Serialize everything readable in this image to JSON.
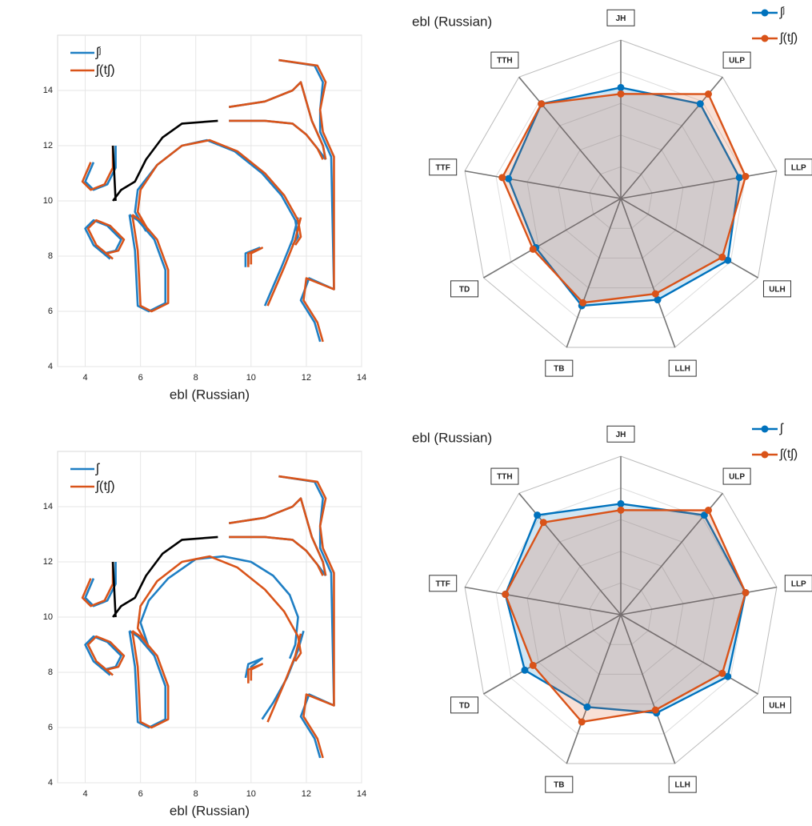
{
  "chart_data": [
    {
      "type": "contour",
      "xlabel": "ebl (Russian)",
      "xlim": [
        3,
        14
      ],
      "ylim": [
        4,
        16
      ],
      "xticks": [
        4,
        6,
        8,
        10,
        12,
        14
      ],
      "yticks": [
        4,
        6,
        8,
        10,
        12,
        14
      ],
      "grid": true,
      "legend": "upper left",
      "series": [
        {
          "name": "ʃʲ",
          "color": "#1f7fc4",
          "x": [
            4.3,
            4.0,
            4.3,
            4.8,
            5.1,
            5.1,
            null,
            4.9,
            4.3,
            4.0,
            4.3,
            4.8,
            5.3,
            5.1,
            4.7,
            null,
            5.6,
            5.8,
            5.9,
            6.3,
            6.9,
            6.9,
            6.5,
            5.9,
            5.6,
            null,
            6.2,
            5.8,
            5.9,
            6.6,
            7.5,
            8.4,
            9.4,
            10.4,
            11.1,
            11.6,
            11.7,
            11.5,
            null,
            11.7,
            11.5,
            11.1,
            10.8,
            10.5,
            null,
            9.8,
            9.8,
            10.3,
            9.9,
            9.9,
            null,
            9.2,
            10.5,
            11.5,
            12.0,
            12.4,
            12.7,
            null,
            9.2,
            10.5,
            11.5,
            11.8,
            12.2,
            12.6,
            12.7,
            null,
            11.0,
            12.3,
            12.6,
            12.5,
            12.5,
            12.9,
            13.0,
            12.1,
            11.8,
            12.3,
            12.5
          ],
          "values": [
            11.4,
            10.7,
            10.4,
            10.6,
            11.2,
            12.0,
            null,
            7.9,
            8.4,
            9.0,
            9.3,
            9.1,
            8.6,
            8.2,
            8.1,
            null,
            9.5,
            8.2,
            6.2,
            6.0,
            6.3,
            7.5,
            8.6,
            9.3,
            9.5,
            null,
            8.9,
            9.6,
            10.4,
            11.3,
            12.0,
            12.2,
            11.8,
            11.0,
            10.2,
            9.3,
            8.7,
            8.4,
            null,
            9.4,
            8.6,
            7.6,
            6.9,
            6.2,
            null,
            7.6,
            8.1,
            8.3,
            8.1,
            7.7,
            null,
            12.9,
            12.9,
            12.8,
            12.4,
            11.9,
            11.5,
            null,
            13.4,
            13.6,
            14.0,
            14.3,
            12.9,
            12.0,
            11.5,
            null,
            15.1,
            14.9,
            14.3,
            13.3,
            12.5,
            11.6,
            6.8,
            7.2,
            6.4,
            5.6,
            4.9
          ]
        },
        {
          "name": "ʃ(tʃ)",
          "color": "#d9541a",
          "x": [
            4.2,
            3.9,
            4.2,
            4.7,
            5.0,
            5.0,
            null,
            5.0,
            4.4,
            4.1,
            4.4,
            4.9,
            5.4,
            5.2,
            4.8,
            null,
            5.7,
            5.9,
            6.0,
            6.4,
            7.0,
            7.0,
            6.6,
            6.0,
            5.7,
            null,
            6.3,
            5.9,
            6.0,
            6.6,
            7.5,
            8.5,
            9.5,
            10.5,
            11.2,
            11.7,
            11.8,
            11.6,
            null,
            11.8,
            11.6,
            11.2,
            10.9,
            10.6,
            null,
            9.9,
            9.9,
            10.4,
            10.0,
            10.0,
            null,
            9.2,
            10.5,
            11.5,
            12.0,
            12.4,
            12.6,
            null,
            9.2,
            10.5,
            11.5,
            11.8,
            12.2,
            12.6,
            12.7,
            null,
            11.0,
            12.4,
            12.7,
            12.5,
            12.6,
            13.0,
            13.0,
            12.0,
            11.9,
            12.4,
            12.6
          ],
          "values": [
            11.4,
            10.7,
            10.4,
            10.6,
            11.2,
            12.0,
            null,
            7.9,
            8.4,
            9.0,
            9.3,
            9.1,
            8.6,
            8.2,
            8.1,
            null,
            9.5,
            8.2,
            6.2,
            6.0,
            6.3,
            7.5,
            8.6,
            9.3,
            9.5,
            null,
            8.9,
            9.6,
            10.4,
            11.3,
            12.0,
            12.2,
            11.8,
            11.0,
            10.2,
            9.3,
            8.7,
            8.4,
            null,
            9.4,
            8.6,
            7.6,
            6.9,
            6.2,
            null,
            7.6,
            8.1,
            8.3,
            8.1,
            7.7,
            null,
            12.9,
            12.9,
            12.8,
            12.4,
            11.9,
            11.5,
            null,
            13.4,
            13.6,
            14.0,
            14.3,
            12.9,
            12.0,
            11.5,
            null,
            15.1,
            14.9,
            14.3,
            13.3,
            12.5,
            11.6,
            6.8,
            7.2,
            6.4,
            5.6,
            4.9
          ]
        },
        {
          "color": "#000000",
          "x": [
            5.0,
            5.1,
            null,
            5.0,
            5.3,
            5.8,
            6.2,
            6.8,
            7.5,
            8.8
          ],
          "values": [
            12.0,
            10.0,
            null,
            10.0,
            10.4,
            10.7,
            11.5,
            12.3,
            12.8,
            12.9
          ]
        }
      ]
    },
    {
      "type": "radar",
      "title": "ebl (Russian)",
      "categories": [
        "JH",
        "ULP",
        "LLP",
        "ULH",
        "LLH",
        "TB",
        "TD",
        "TTF",
        "TTH"
      ],
      "rlim": [
        0,
        5
      ],
      "rticks": [
        1,
        2,
        3,
        4,
        5
      ],
      "legend": "upper right",
      "series": [
        {
          "name": "ʃʲ",
          "color": "#0072bd",
          "values": [
            3.5,
            3.9,
            3.8,
            3.9,
            3.4,
            3.6,
            3.1,
            3.6,
            3.9
          ]
        },
        {
          "name": "ʃ(tʃ)",
          "color": "#d95319",
          "values": [
            3.3,
            4.3,
            4.0,
            3.7,
            3.2,
            3.5,
            3.2,
            3.8,
            3.9
          ]
        }
      ]
    },
    {
      "type": "contour",
      "xlabel": "ebl (Russian)",
      "xlim": [
        3,
        14
      ],
      "ylim": [
        4,
        16
      ],
      "xticks": [
        4,
        6,
        8,
        10,
        12,
        14
      ],
      "yticks": [
        4,
        6,
        8,
        10,
        12,
        14
      ],
      "grid": true,
      "legend": "upper left",
      "series": [
        {
          "name": "ʃ",
          "color": "#1f7fc4",
          "x": [
            4.3,
            4.0,
            4.3,
            4.8,
            5.1,
            5.1,
            null,
            4.9,
            4.3,
            4.0,
            4.3,
            4.8,
            5.3,
            5.1,
            4.7,
            null,
            5.6,
            5.8,
            5.9,
            6.3,
            6.9,
            6.9,
            6.5,
            5.9,
            5.6,
            null,
            6.3,
            6.0,
            6.3,
            7.0,
            8.0,
            9.0,
            10.0,
            10.8,
            11.4,
            11.7,
            11.6,
            11.4,
            null,
            11.9,
            11.7,
            11.3,
            10.8,
            10.4,
            null,
            9.8,
            9.9,
            10.4,
            10.0,
            10.0,
            null,
            9.2,
            10.5,
            11.5,
            12.0,
            12.4,
            12.7,
            null,
            9.2,
            10.5,
            11.5,
            11.8,
            12.2,
            12.6,
            12.7,
            null,
            11.0,
            12.3,
            12.6,
            12.5,
            12.5,
            12.9,
            13.0,
            12.1,
            11.8,
            12.3,
            12.5
          ],
          "values": [
            11.4,
            10.7,
            10.4,
            10.6,
            11.2,
            12.0,
            null,
            7.9,
            8.4,
            9.0,
            9.3,
            9.1,
            8.6,
            8.2,
            8.1,
            null,
            9.5,
            8.2,
            6.2,
            6.0,
            6.3,
            7.5,
            8.6,
            9.3,
            9.5,
            null,
            8.9,
            9.8,
            10.6,
            11.4,
            12.1,
            12.2,
            12.0,
            11.5,
            10.8,
            10.0,
            9.0,
            8.5,
            null,
            9.5,
            8.8,
            7.8,
            6.9,
            6.3,
            null,
            7.8,
            8.3,
            8.5,
            8.2,
            7.9,
            null,
            12.9,
            12.9,
            12.8,
            12.4,
            11.9,
            11.5,
            null,
            13.4,
            13.6,
            14.0,
            14.3,
            12.9,
            12.0,
            11.5,
            null,
            15.1,
            14.9,
            14.3,
            13.3,
            12.5,
            11.6,
            6.8,
            7.2,
            6.4,
            5.6,
            4.9
          ]
        },
        {
          "name": "ʃ(tʃ)",
          "color": "#d9541a",
          "x": [
            4.2,
            3.9,
            4.2,
            4.7,
            5.0,
            5.0,
            null,
            5.0,
            4.4,
            4.1,
            4.4,
            4.9,
            5.4,
            5.2,
            4.8,
            null,
            5.7,
            5.9,
            6.0,
            6.4,
            7.0,
            7.0,
            6.6,
            6.0,
            5.7,
            null,
            6.3,
            5.9,
            6.0,
            6.6,
            7.5,
            8.5,
            9.5,
            10.5,
            11.2,
            11.7,
            11.8,
            11.6,
            null,
            11.8,
            11.6,
            11.2,
            10.9,
            10.6,
            null,
            9.9,
            9.9,
            10.4,
            10.0,
            10.0,
            null,
            9.2,
            10.5,
            11.5,
            12.0,
            12.4,
            12.6,
            null,
            9.2,
            10.5,
            11.5,
            11.8,
            12.2,
            12.6,
            12.7,
            null,
            11.0,
            12.4,
            12.7,
            12.5,
            12.6,
            13.0,
            13.0,
            12.0,
            11.9,
            12.4,
            12.6
          ],
          "values": [
            11.4,
            10.7,
            10.4,
            10.6,
            11.2,
            12.0,
            null,
            7.9,
            8.4,
            9.0,
            9.3,
            9.1,
            8.6,
            8.2,
            8.1,
            null,
            9.5,
            8.2,
            6.2,
            6.0,
            6.3,
            7.5,
            8.6,
            9.3,
            9.5,
            null,
            8.9,
            9.6,
            10.4,
            11.3,
            12.0,
            12.2,
            11.8,
            11.0,
            10.2,
            9.3,
            8.7,
            8.4,
            null,
            9.4,
            8.6,
            7.6,
            6.9,
            6.2,
            null,
            7.6,
            8.1,
            8.3,
            8.1,
            7.7,
            null,
            12.9,
            12.9,
            12.8,
            12.4,
            11.9,
            11.5,
            null,
            13.4,
            13.6,
            14.0,
            14.3,
            12.9,
            12.0,
            11.5,
            null,
            15.1,
            14.9,
            14.3,
            13.3,
            12.5,
            11.6,
            6.8,
            7.2,
            6.4,
            5.6,
            4.9
          ]
        },
        {
          "color": "#000000",
          "x": [
            5.0,
            5.1,
            null,
            5.0,
            5.3,
            5.8,
            6.2,
            6.8,
            7.5,
            8.8
          ],
          "values": [
            12.0,
            10.0,
            null,
            10.0,
            10.4,
            10.7,
            11.5,
            12.3,
            12.8,
            12.9
          ]
        }
      ]
    },
    {
      "type": "radar",
      "title": "ebl (Russian)",
      "categories": [
        "JH",
        "ULP",
        "LLP",
        "ULH",
        "LLH",
        "TB",
        "TD",
        "TTF",
        "TTH"
      ],
      "rlim": [
        0,
        5
      ],
      "rticks": [
        1,
        2,
        3,
        4,
        5
      ],
      "legend": "upper right",
      "series": [
        {
          "name": "ʃ",
          "color": "#0072bd",
          "values": [
            3.5,
            4.1,
            4.0,
            3.9,
            3.3,
            3.1,
            3.5,
            3.7,
            4.1
          ]
        },
        {
          "name": "ʃ(tʃ)",
          "color": "#d95319",
          "values": [
            3.3,
            4.3,
            4.0,
            3.7,
            3.2,
            3.6,
            3.2,
            3.7,
            3.8
          ]
        }
      ]
    }
  ]
}
